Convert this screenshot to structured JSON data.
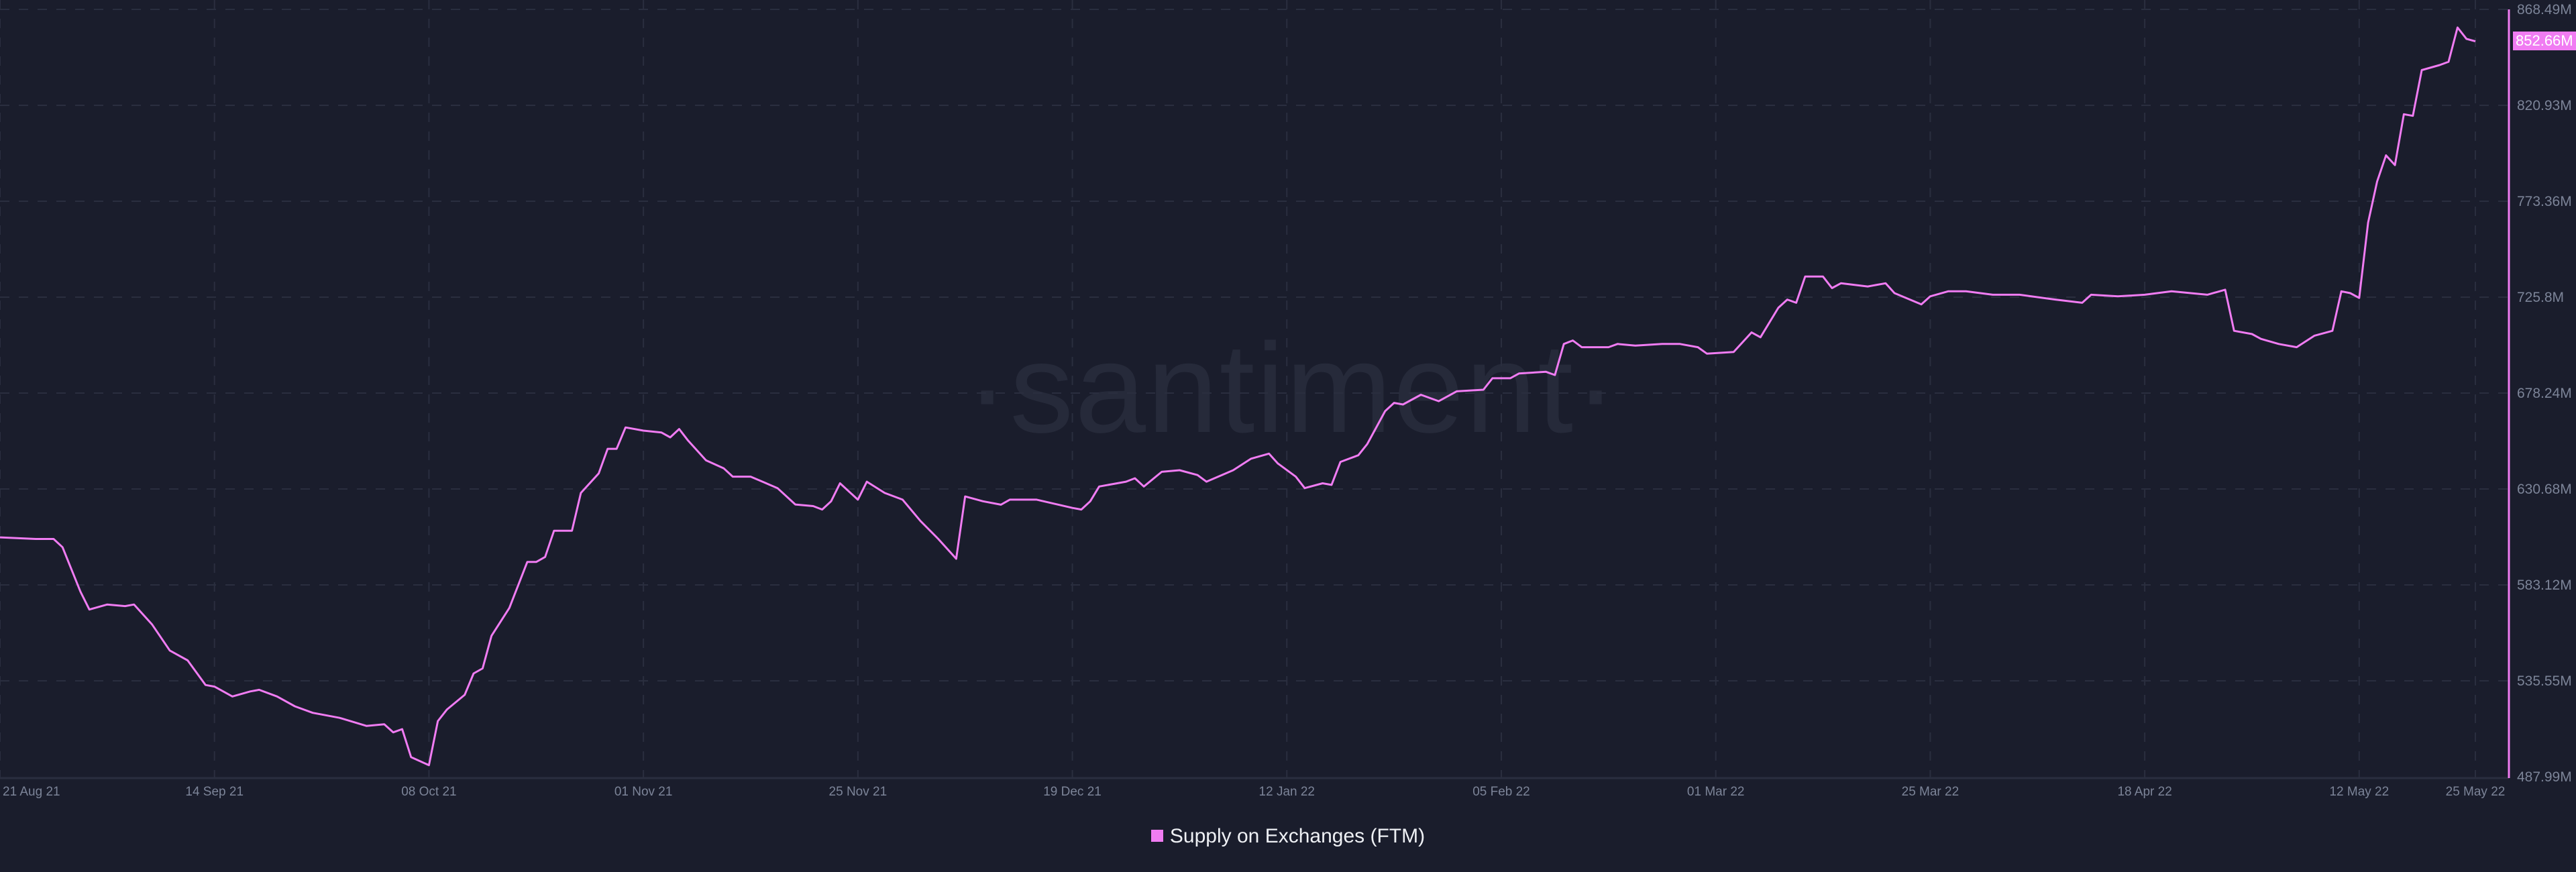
{
  "colors": {
    "line": "#f07cf2",
    "background": "#1a1d2c",
    "axis_text": "#7c8498"
  },
  "watermark": "·santiment·",
  "current_value_label": "852.66M",
  "legend": {
    "label": "Supply on Exchanges (FTM)"
  },
  "chart_data": {
    "type": "line",
    "title": "",
    "xlabel": "",
    "ylabel": "",
    "ylim": [
      487.99,
      868.49
    ],
    "xlim": [
      "2021-08-21",
      "2022-05-25"
    ],
    "grid": true,
    "legend_placement": "bottom",
    "y_ticks": [
      "868.49M",
      "820.93M",
      "773.36M",
      "725.8M",
      "678.24M",
      "630.68M",
      "583.12M",
      "535.55M",
      "487.99M"
    ],
    "x_ticks": [
      {
        "date": "2021-08-21",
        "label": "21 Aug 21"
      },
      {
        "date": "2021-09-14",
        "label": "14 Sep 21"
      },
      {
        "date": "2021-10-08",
        "label": "08 Oct 21"
      },
      {
        "date": "2021-11-01",
        "label": "01 Nov 21"
      },
      {
        "date": "2021-11-25",
        "label": "25 Nov 21"
      },
      {
        "date": "2021-12-19",
        "label": "19 Dec 21"
      },
      {
        "date": "2022-01-12",
        "label": "12 Jan 22"
      },
      {
        "date": "2022-02-05",
        "label": "05 Feb 22"
      },
      {
        "date": "2022-03-01",
        "label": "01 Mar 22"
      },
      {
        "date": "2022-03-25",
        "label": "25 Mar 22"
      },
      {
        "date": "2022-04-18",
        "label": "18 Apr 22"
      },
      {
        "date": "2022-05-12",
        "label": "12 May 22"
      },
      {
        "date": "2022-05-25",
        "label": "25 May 22"
      }
    ],
    "series": [
      {
        "name": "Supply on Exchanges (FTM)",
        "unit": "M",
        "points": [
          [
            "2021-08-21",
            606.7
          ],
          [
            "2021-08-25",
            605.9
          ],
          [
            "2021-08-27",
            605.9
          ],
          [
            "2021-08-28",
            601.8
          ],
          [
            "2021-08-30",
            579.8
          ],
          [
            "2021-08-31",
            570.9
          ],
          [
            "2021-09-02",
            573.4
          ],
          [
            "2021-09-04",
            572.6
          ],
          [
            "2021-09-05",
            573.4
          ],
          [
            "2021-09-07",
            563.6
          ],
          [
            "2021-09-09",
            550.6
          ],
          [
            "2021-09-11",
            545.7
          ],
          [
            "2021-09-13",
            533.5
          ],
          [
            "2021-09-14",
            532.7
          ],
          [
            "2021-09-16",
            527.8
          ],
          [
            "2021-09-18",
            530.3
          ],
          [
            "2021-09-19",
            531.1
          ],
          [
            "2021-09-21",
            527.8
          ],
          [
            "2021-09-23",
            522.9
          ],
          [
            "2021-09-25",
            519.7
          ],
          [
            "2021-09-28",
            517.2
          ],
          [
            "2021-10-01",
            513.2
          ],
          [
            "2021-10-03",
            514.0
          ],
          [
            "2021-10-04",
            510.0
          ],
          [
            "2021-10-05",
            511.6
          ],
          [
            "2021-10-06",
            497.7
          ],
          [
            "2021-10-08",
            493.7
          ],
          [
            "2021-10-09",
            515.6
          ],
          [
            "2021-10-10",
            521.3
          ],
          [
            "2021-10-12",
            528.6
          ],
          [
            "2021-10-13",
            539.2
          ],
          [
            "2021-10-14",
            541.7
          ],
          [
            "2021-10-15",
            557.9
          ],
          [
            "2021-10-17",
            571.7
          ],
          [
            "2021-10-19",
            594.5
          ],
          [
            "2021-10-20",
            594.5
          ],
          [
            "2021-10-21",
            597.0
          ],
          [
            "2021-10-22",
            610.0
          ],
          [
            "2021-10-24",
            610.0
          ],
          [
            "2021-10-25",
            628.7
          ],
          [
            "2021-10-27",
            638.4
          ],
          [
            "2021-10-28",
            650.6
          ],
          [
            "2021-10-29",
            650.6
          ],
          [
            "2021-10-30",
            661.2
          ],
          [
            "2021-11-01",
            659.6
          ],
          [
            "2021-11-03",
            658.7
          ],
          [
            "2021-11-04",
            656.3
          ],
          [
            "2021-11-05",
            660.4
          ],
          [
            "2021-11-06",
            654.7
          ],
          [
            "2021-11-08",
            644.9
          ],
          [
            "2021-11-10",
            640.9
          ],
          [
            "2021-11-11",
            636.8
          ],
          [
            "2021-11-13",
            636.8
          ],
          [
            "2021-11-16",
            631.1
          ],
          [
            "2021-11-18",
            623.0
          ],
          [
            "2021-11-20",
            622.2
          ],
          [
            "2021-11-21",
            620.5
          ],
          [
            "2021-11-22",
            624.6
          ],
          [
            "2021-11-23",
            633.5
          ],
          [
            "2021-11-25",
            625.4
          ],
          [
            "2021-11-26",
            634.3
          ],
          [
            "2021-11-28",
            628.7
          ],
          [
            "2021-11-30",
            625.4
          ],
          [
            "2021-12-02",
            614.8
          ],
          [
            "2021-12-04",
            605.9
          ],
          [
            "2021-12-06",
            596.1
          ],
          [
            "2021-12-07",
            627.0
          ],
          [
            "2021-12-09",
            624.6
          ],
          [
            "2021-12-11",
            622.9
          ],
          [
            "2021-12-12",
            625.4
          ],
          [
            "2021-12-15",
            625.4
          ],
          [
            "2021-12-19",
            621.3
          ],
          [
            "2021-12-20",
            620.5
          ],
          [
            "2021-12-21",
            624.6
          ],
          [
            "2021-12-22",
            631.9
          ],
          [
            "2021-12-25",
            634.3
          ],
          [
            "2021-12-26",
            636.0
          ],
          [
            "2021-12-27",
            631.9
          ],
          [
            "2021-12-29",
            639.2
          ],
          [
            "2021-12-31",
            640.0
          ],
          [
            "2022-01-02",
            637.6
          ],
          [
            "2022-01-03",
            634.3
          ],
          [
            "2022-01-06",
            640.0
          ],
          [
            "2022-01-08",
            645.7
          ],
          [
            "2022-01-10",
            648.2
          ],
          [
            "2022-01-11",
            643.3
          ],
          [
            "2022-01-13",
            636.8
          ],
          [
            "2022-01-14",
            631.1
          ],
          [
            "2022-01-16",
            633.5
          ],
          [
            "2022-01-17",
            632.7
          ],
          [
            "2022-01-18",
            644.1
          ],
          [
            "2022-01-20",
            647.4
          ],
          [
            "2022-01-21",
            653.0
          ],
          [
            "2022-01-23",
            669.3
          ],
          [
            "2022-01-24",
            673.4
          ],
          [
            "2022-01-25",
            672.6
          ],
          [
            "2022-01-27",
            677.4
          ],
          [
            "2022-01-29",
            674.2
          ],
          [
            "2022-01-31",
            679.1
          ],
          [
            "2022-02-03",
            679.9
          ],
          [
            "2022-02-04",
            685.6
          ],
          [
            "2022-02-06",
            685.6
          ],
          [
            "2022-02-07",
            688.0
          ],
          [
            "2022-02-10",
            688.8
          ],
          [
            "2022-02-11",
            687.2
          ],
          [
            "2022-02-12",
            702.6
          ],
          [
            "2022-02-13",
            704.3
          ],
          [
            "2022-02-14",
            701.0
          ],
          [
            "2022-02-17",
            701.0
          ],
          [
            "2022-02-18",
            702.6
          ],
          [
            "2022-02-20",
            701.8
          ],
          [
            "2022-02-23",
            702.6
          ],
          [
            "2022-02-25",
            702.6
          ],
          [
            "2022-02-27",
            701.0
          ],
          [
            "2022-02-28",
            697.8
          ],
          [
            "2022-03-03",
            698.6
          ],
          [
            "2022-03-05",
            708.3
          ],
          [
            "2022-03-06",
            705.9
          ],
          [
            "2022-03-08",
            720.5
          ],
          [
            "2022-03-09",
            724.6
          ],
          [
            "2022-03-10",
            723.0
          ],
          [
            "2022-03-11",
            736.0
          ],
          [
            "2022-03-13",
            736.0
          ],
          [
            "2022-03-14",
            730.3
          ],
          [
            "2022-03-15",
            732.7
          ],
          [
            "2022-03-18",
            731.1
          ],
          [
            "2022-03-20",
            732.7
          ],
          [
            "2022-03-21",
            727.8
          ],
          [
            "2022-03-24",
            722.2
          ],
          [
            "2022-03-25",
            726.2
          ],
          [
            "2022-03-27",
            728.7
          ],
          [
            "2022-03-29",
            728.7
          ],
          [
            "2022-04-01",
            727.0
          ],
          [
            "2022-04-04",
            727.0
          ],
          [
            "2022-04-08",
            724.6
          ],
          [
            "2022-04-11",
            723.0
          ],
          [
            "2022-04-12",
            727.0
          ],
          [
            "2022-04-15",
            726.2
          ],
          [
            "2022-04-18",
            727.0
          ],
          [
            "2022-04-21",
            728.7
          ],
          [
            "2022-04-25",
            727.0
          ],
          [
            "2022-04-27",
            729.5
          ],
          [
            "2022-04-28",
            709.1
          ],
          [
            "2022-04-30",
            707.5
          ],
          [
            "2022-05-01",
            705.1
          ],
          [
            "2022-05-03",
            702.6
          ],
          [
            "2022-05-05",
            701.0
          ],
          [
            "2022-05-07",
            706.7
          ],
          [
            "2022-05-09",
            709.1
          ],
          [
            "2022-05-10",
            728.7
          ],
          [
            "2022-05-11",
            727.8
          ],
          [
            "2022-05-12",
            725.4
          ],
          [
            "2022-05-13",
            762.8
          ],
          [
            "2022-05-14",
            783.1
          ],
          [
            "2022-05-15",
            796.1
          ],
          [
            "2022-05-16",
            791.3
          ],
          [
            "2022-05-17",
            816.5
          ],
          [
            "2022-05-18",
            815.7
          ],
          [
            "2022-05-19",
            838.4
          ],
          [
            "2022-05-21",
            840.9
          ],
          [
            "2022-05-22",
            842.5
          ],
          [
            "2022-05-23",
            859.5
          ],
          [
            "2022-05-24",
            853.9
          ],
          [
            "2022-05-25",
            852.66
          ]
        ]
      }
    ]
  }
}
